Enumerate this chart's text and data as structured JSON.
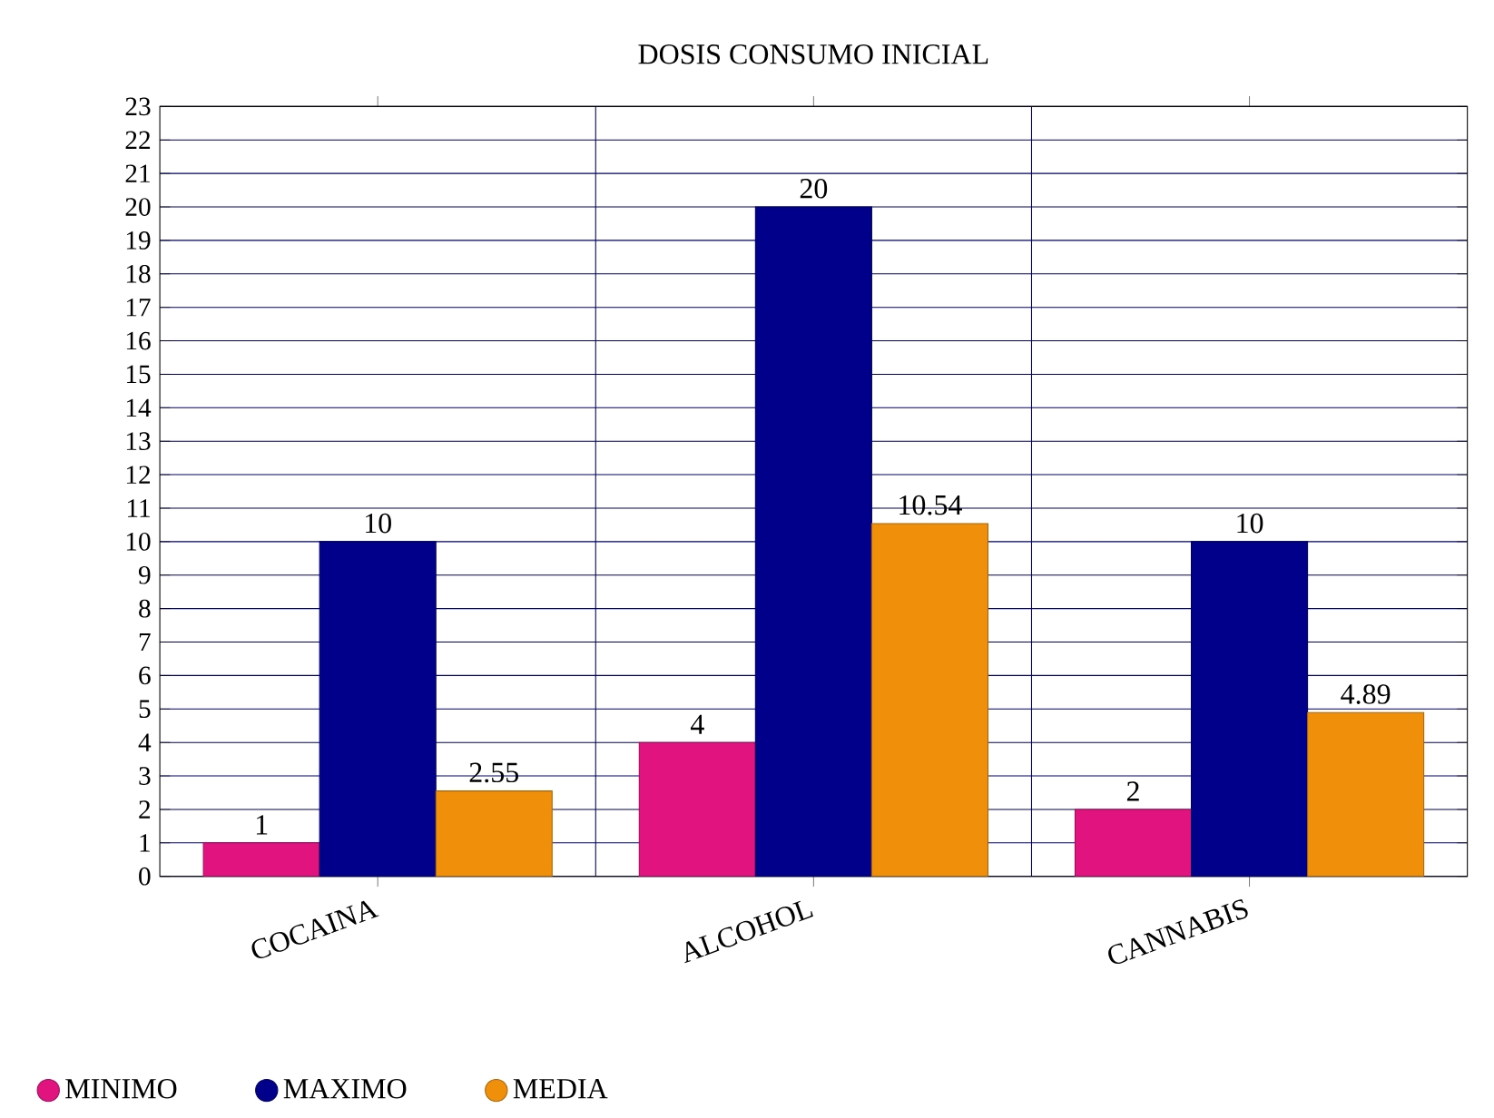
{
  "chart_data": {
    "type": "bar",
    "title": "DOSIS CONSUMO INICIAL",
    "categories": [
      "COCAINA",
      "ALCOHOL",
      "CANNABIS"
    ],
    "series": [
      {
        "name": "MINIMO",
        "color": "#e0137f",
        "values": [
          1,
          4,
          2
        ]
      },
      {
        "name": "MAXIMO",
        "color": "#00008b",
        "values": [
          10,
          20,
          10
        ]
      },
      {
        "name": "MEDIA",
        "color": "#f0900a",
        "values": [
          2.55,
          10.54,
          4.89
        ]
      }
    ],
    "ylim": [
      0,
      23
    ],
    "yticks": [
      0,
      1,
      2,
      3,
      4,
      5,
      6,
      7,
      8,
      9,
      10,
      11,
      12,
      13,
      14,
      15,
      16,
      17,
      18,
      19,
      20,
      21,
      22,
      23
    ],
    "grid": true,
    "legend": "bottom",
    "data_labels": true
  }
}
